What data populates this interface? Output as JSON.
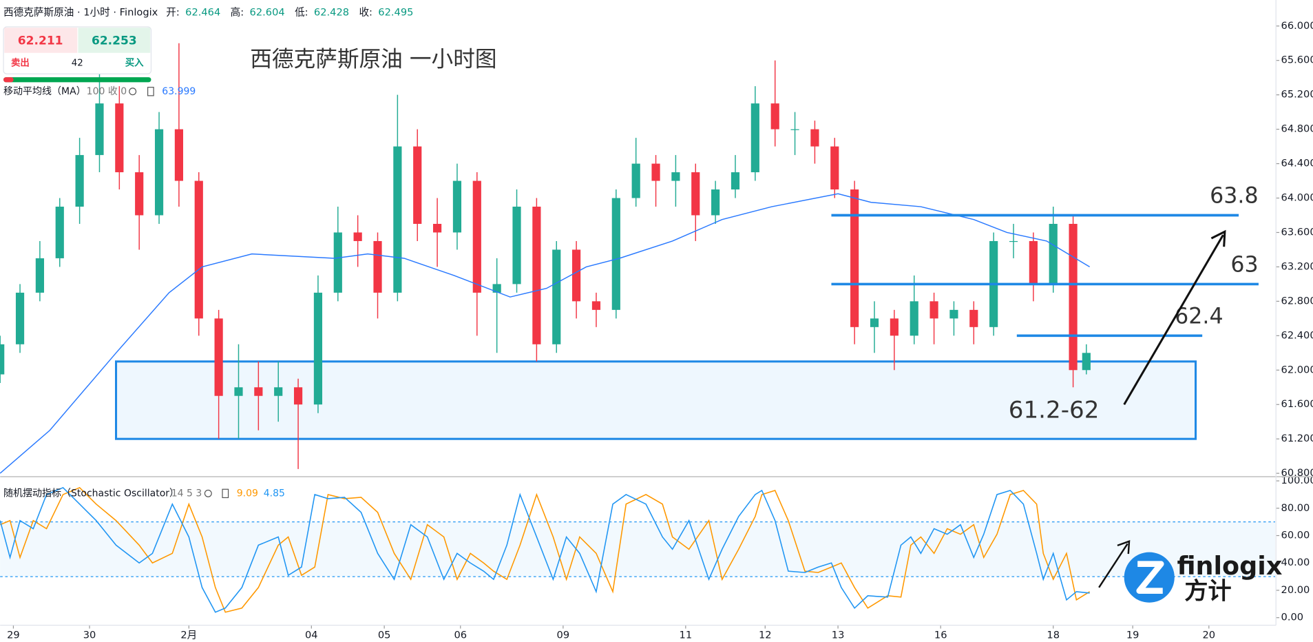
{
  "header": {
    "symbol": "西德克萨斯原油 · 1小时 · Finlogix",
    "open_label": "开:",
    "open": 62.464,
    "high_label": "高:",
    "high": 62.604,
    "low_label": "低:",
    "low": 62.428,
    "close_label": "收:",
    "close": 62.495
  },
  "trade_panel": {
    "sell_price": 62.211,
    "buy_price": 62.253,
    "sell": "卖出",
    "buy": "买入",
    "spread": 42
  },
  "chart_data": [
    {
      "type": "candlestick",
      "title": "西德克萨斯原油 一小时图",
      "x": [
        0,
        6,
        12,
        18,
        24,
        30,
        36,
        42,
        48,
        54,
        60,
        66,
        72,
        78,
        84,
        90,
        96,
        102,
        108,
        114,
        120,
        126,
        132,
        138,
        144,
        150,
        156,
        162,
        168,
        174,
        180,
        186,
        192,
        198,
        204,
        210,
        216,
        222,
        228,
        234,
        240,
        246,
        252,
        258,
        264,
        270,
        276,
        282,
        288,
        294,
        300,
        306,
        312,
        318,
        324,
        328
      ],
      "open": [
        61.95,
        62.3,
        62.9,
        63.3,
        63.9,
        64.5,
        65.1,
        64.3,
        63.8,
        64.8,
        64.2,
        62.6,
        61.7,
        61.8,
        61.7,
        61.8,
        61.6,
        62.9,
        63.6,
        63.5,
        62.9,
        64.6,
        63.7,
        63.6,
        64.2,
        62.9,
        63.0,
        63.9,
        62.3,
        63.4,
        62.8,
        62.7,
        64.0,
        64.4,
        64.2,
        64.3,
        63.8,
        64.1,
        64.3,
        65.1,
        64.8,
        64.8,
        64.6,
        64.1,
        62.5,
        62.6,
        62.4,
        62.8,
        62.6,
        62.7,
        62.5,
        63.5,
        63.5,
        63.0,
        63.7,
        62.0
      ],
      "high": [
        62.4,
        63.0,
        63.5,
        64.0,
        64.7,
        65.5,
        65.3,
        64.5,
        65.0,
        65.8,
        64.3,
        62.7,
        62.3,
        62.1,
        62.1,
        61.9,
        63.1,
        63.9,
        63.8,
        63.6,
        65.2,
        64.8,
        64.0,
        64.4,
        64.3,
        63.3,
        64.1,
        64.0,
        63.5,
        63.5,
        62.9,
        64.1,
        64.7,
        64.5,
        64.5,
        64.4,
        64.2,
        64.5,
        65.3,
        65.6,
        65.0,
        64.9,
        64.7,
        64.2,
        62.8,
        62.7,
        63.1,
        62.9,
        62.8,
        62.8,
        63.6,
        63.7,
        63.6,
        63.9,
        63.8,
        62.3
      ],
      "low": [
        61.85,
        62.2,
        62.8,
        63.2,
        63.7,
        64.3,
        64.1,
        63.4,
        63.7,
        63.9,
        62.4,
        61.2,
        61.2,
        61.3,
        61.4,
        60.85,
        61.5,
        62.8,
        63.2,
        62.6,
        62.8,
        63.5,
        63.2,
        63.4,
        62.4,
        62.2,
        62.9,
        62.1,
        62.2,
        62.6,
        62.5,
        62.6,
        63.9,
        63.9,
        63.9,
        63.5,
        63.7,
        64.0,
        64.2,
        64.6,
        64.5,
        64.4,
        64.0,
        62.3,
        62.2,
        62.0,
        62.3,
        62.3,
        62.4,
        62.3,
        62.4,
        63.3,
        62.8,
        62.9,
        61.8,
        61.95
      ],
      "close": [
        62.3,
        62.9,
        63.3,
        63.9,
        64.5,
        65.1,
        64.3,
        63.8,
        64.8,
        64.2,
        62.6,
        61.7,
        61.8,
        61.7,
        61.8,
        61.6,
        62.9,
        63.6,
        63.5,
        62.9,
        64.6,
        63.7,
        63.6,
        64.2,
        62.9,
        63.0,
        63.9,
        62.3,
        63.4,
        62.8,
        62.7,
        64.0,
        64.4,
        64.2,
        64.3,
        63.8,
        64.1,
        64.3,
        65.1,
        64.8,
        64.8,
        64.6,
        64.1,
        62.5,
        62.6,
        62.4,
        62.8,
        62.6,
        62.7,
        62.5,
        63.5,
        63.5,
        63.0,
        63.7,
        62.0,
        62.2
      ],
      "up_color": "#22ab94",
      "down_color": "#f23645",
      "series": [
        {
          "name": "移动平均线（MA）",
          "params": "100 收 0",
          "legend_value": 63.999,
          "color": "#2979ff",
          "x": [
            0,
            15,
            35,
            51,
            61,
            76,
            101,
            111,
            122,
            137,
            154,
            165,
            177,
            187,
            203,
            218,
            233,
            253,
            263,
            278,
            294,
            304,
            316,
            329
          ],
          "values": [
            60.8,
            61.3,
            62.2,
            62.9,
            63.2,
            63.35,
            63.3,
            63.35,
            63.3,
            63.1,
            62.85,
            62.95,
            63.2,
            63.3,
            63.5,
            63.75,
            63.9,
            64.05,
            63.95,
            63.9,
            63.75,
            63.6,
            63.5,
            63.2
          ]
        }
      ],
      "levels": [
        {
          "value": 63.8,
          "label": "63.8",
          "x": [
            251,
            374
          ]
        },
        {
          "value": 63,
          "label": "63",
          "x": [
            251,
            380
          ]
        },
        {
          "value": 62.4,
          "label": "62.4",
          "x": [
            307,
            363
          ]
        }
      ],
      "zone": {
        "low": 61.2,
        "high": 62.1,
        "x": [
          35,
          361
        ],
        "label": "61.2-62"
      },
      "level_color": "#1e88e5",
      "xlim": [
        0,
        385
      ],
      "xticks": [
        {
          "value": 4,
          "label": "29"
        },
        {
          "value": 27,
          "label": "30"
        },
        {
          "value": 57,
          "label": "2月"
        },
        {
          "value": 94,
          "label": "04"
        },
        {
          "value": 116,
          "label": "05"
        },
        {
          "value": 139,
          "label": "06"
        },
        {
          "value": 170,
          "label": "09"
        },
        {
          "value": 207,
          "label": "11"
        },
        {
          "value": 231,
          "label": "12"
        },
        {
          "value": 253,
          "label": "13"
        },
        {
          "value": 284,
          "label": "16"
        },
        {
          "value": 318,
          "label": "18"
        },
        {
          "value": 342,
          "label": "19"
        },
        {
          "value": 365,
          "label": "20"
        }
      ],
      "ylim": [
        60.8,
        66
      ],
      "yticks": [
        {
          "value": 60.8,
          "label": "60.800"
        },
        {
          "value": 61.2,
          "label": "61.200"
        },
        {
          "value": 61.6,
          "label": "61.600"
        },
        {
          "value": 62,
          "label": "62.000"
        },
        {
          "value": 62.4,
          "label": "62.400"
        },
        {
          "value": 62.8,
          "label": "62.800"
        },
        {
          "value": 63.2,
          "label": "63.200"
        },
        {
          "value": 63.6,
          "label": "63.600"
        },
        {
          "value": 64,
          "label": "64.000"
        },
        {
          "value": 64.4,
          "label": "64.400"
        },
        {
          "value": 64.8,
          "label": "64.800"
        },
        {
          "value": 65.2,
          "label": "65.200"
        },
        {
          "value": 65.6,
          "label": "65.600"
        },
        {
          "value": 66,
          "label": "66.000"
        }
      ]
    },
    {
      "type": "line",
      "title": "随机摆动指标（Stochastic Oscillator）",
      "params": "14 5 3",
      "x": [
        0,
        3,
        6,
        10,
        14,
        19,
        24,
        29,
        35,
        42,
        46,
        52,
        57,
        61,
        65,
        68,
        73,
        78,
        84,
        87,
        91,
        95,
        99,
        104,
        109,
        114,
        119,
        124,
        129,
        134,
        138,
        142,
        146,
        149,
        153,
        157,
        162,
        167,
        171,
        175,
        180,
        185,
        189,
        195,
        200,
        203,
        208,
        214,
        218,
        223,
        228,
        230,
        234,
        238,
        243,
        247,
        251,
        254,
        258,
        262,
        268,
        272,
        275,
        278,
        282,
        286,
        290,
        294,
        297,
        301,
        305,
        309,
        313,
        315,
        318,
        322,
        325,
        329
      ],
      "series": [
        {
          "color": "#ff9800",
          "legend_value": 9.09,
          "values": [
            68,
            71,
            44,
            71,
            65,
            90,
            95,
            83,
            71,
            53,
            40,
            47,
            83,
            59,
            22,
            4,
            7,
            22,
            53,
            59,
            31,
            37,
            90,
            87,
            88,
            77,
            47,
            28,
            68,
            59,
            28,
            47,
            40,
            34,
            28,
            53,
            90,
            59,
            28,
            59,
            47,
            19,
            83,
            90,
            83,
            59,
            50,
            71,
            28,
            50,
            74,
            90,
            93,
            71,
            34,
            33,
            37,
            40,
            22,
            7,
            16,
            15,
            53,
            59,
            47,
            65,
            61,
            68,
            44,
            61,
            90,
            93,
            83,
            47,
            28,
            47,
            13,
            19
          ]
        },
        {
          "color": "#2196f3",
          "legend_value": 4.85,
          "values": [
            71,
            44,
            71,
            65,
            90,
            95,
            83,
            71,
            53,
            40,
            47,
            83,
            59,
            22,
            4,
            7,
            22,
            53,
            59,
            31,
            37,
            90,
            87,
            88,
            77,
            47,
            28,
            68,
            59,
            28,
            47,
            40,
            34,
            28,
            53,
            90,
            59,
            28,
            59,
            47,
            19,
            83,
            90,
            83,
            59,
            50,
            71,
            28,
            50,
            74,
            90,
            93,
            71,
            34,
            33,
            37,
            40,
            22,
            7,
            16,
            15,
            53,
            59,
            47,
            65,
            61,
            68,
            44,
            61,
            90,
            93,
            83,
            47,
            28,
            47,
            13,
            19,
            18
          ]
        }
      ],
      "band": [
        30,
        70
      ],
      "ylim": [
        0,
        100
      ],
      "yticks": [
        {
          "value": 0,
          "label": "0.00"
        },
        {
          "value": 20,
          "label": "20.00"
        },
        {
          "value": 40,
          "label": "40.00"
        },
        {
          "value": 60,
          "label": "60.00"
        },
        {
          "value": 80,
          "label": "80.00"
        },
        {
          "value": 100,
          "label": "100.00"
        }
      ]
    }
  ],
  "logo": {
    "name": "finlogix",
    "cn": "方计"
  }
}
